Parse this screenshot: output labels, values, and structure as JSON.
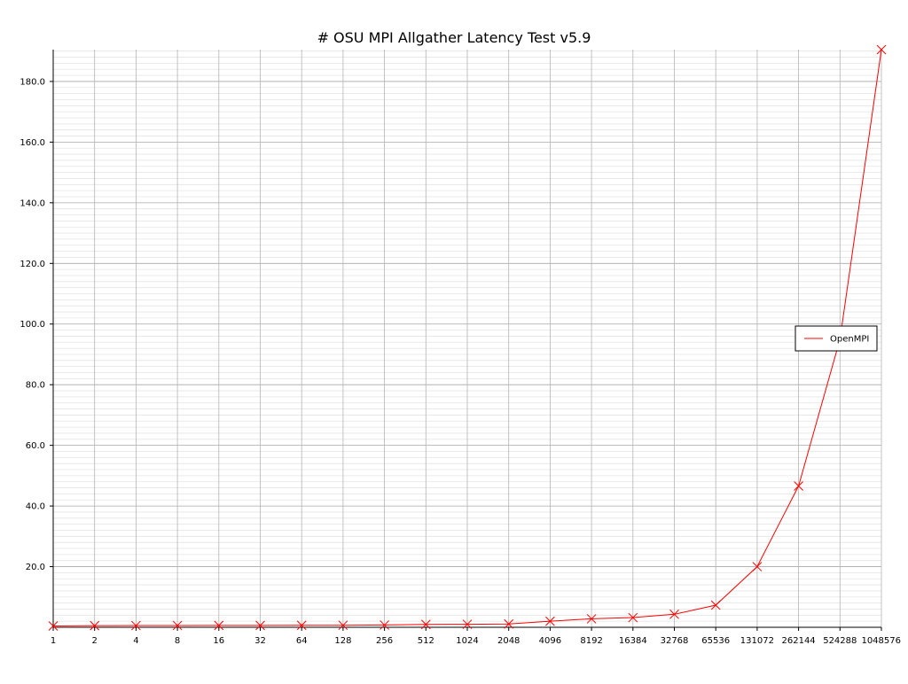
{
  "chart_data": {
    "type": "line",
    "title": "# OSU MPI Allgather Latency Test v5.9",
    "xlabel": "",
    "ylabel": "",
    "x_scale": "log2",
    "categories": [
      "1",
      "2",
      "4",
      "8",
      "16",
      "32",
      "64",
      "128",
      "256",
      "512",
      "1024",
      "2048",
      "4096",
      "8192",
      "16384",
      "32768",
      "65536",
      "131072",
      "262144",
      "524288",
      "1048576"
    ],
    "y_ticks": [
      "20.0",
      "40.0",
      "60.0",
      "80.0",
      "100.0",
      "120.0",
      "140.0",
      "160.0",
      "180.0"
    ],
    "ylim": [
      0,
      190.5
    ],
    "grid": true,
    "legend_position": "right",
    "series": [
      {
        "name": "OpenMPI",
        "color": "#ff0000",
        "marker": "x",
        "values": [
          0.45,
          0.55,
          0.57,
          0.6,
          0.62,
          0.63,
          0.65,
          0.67,
          0.75,
          0.95,
          1.0,
          1.1,
          2.0,
          2.8,
          3.2,
          4.3,
          7.3,
          20.0,
          46.6,
          95.0,
          190.5
        ]
      }
    ]
  }
}
